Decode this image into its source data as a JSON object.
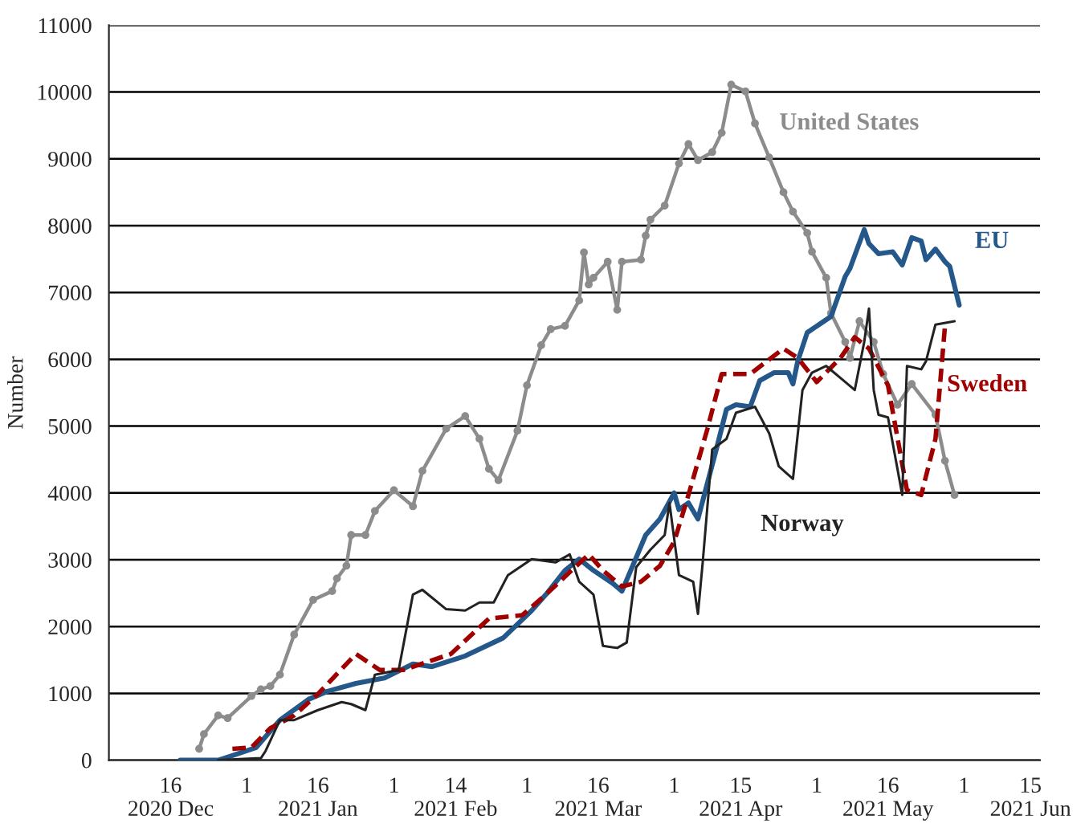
{
  "chart_data": {
    "type": "line",
    "ylabel": "Number",
    "grid": "y",
    "legend": false,
    "xlim": [
      "2020-12-03",
      "2021-06-17"
    ],
    "ylim": [
      0,
      11000
    ],
    "xticks": [
      {
        "value": "2020-12-16",
        "label": "16\n2020 Dec"
      },
      {
        "value": "2021-01-01",
        "label": "1"
      },
      {
        "value": "2021-01-16",
        "label": "16\n2021 Jan"
      },
      {
        "value": "2021-02-01",
        "label": "1"
      },
      {
        "value": "2021-02-14",
        "label": "14\n2021 Feb"
      },
      {
        "value": "2021-03-01",
        "label": "1"
      },
      {
        "value": "2021-03-16",
        "label": "16\n2021 Mar"
      },
      {
        "value": "2021-04-01",
        "label": "1"
      },
      {
        "value": "2021-04-15",
        "label": "15\n2021 Apr"
      },
      {
        "value": "2021-05-01",
        "label": "1"
      },
      {
        "value": "2021-05-16",
        "label": "16\n2021 May"
      },
      {
        "value": "2021-06-01",
        "label": "1"
      },
      {
        "value": "2021-06-15",
        "label": "15\n2021 Jun"
      }
    ],
    "yticks": [
      0,
      1000,
      2000,
      3000,
      4000,
      5000,
      6000,
      7000,
      8000,
      9000,
      10000,
      11000
    ],
    "series": [
      {
        "name": "United States",
        "color": "#8c8c8c",
        "marker": "circle",
        "line_style": "solid",
        "x": [
          "2020-12-22",
          "2020-12-23",
          "2020-12-26",
          "2020-12-28",
          "2021-01-02",
          "2021-01-04",
          "2021-01-06",
          "2021-01-08",
          "2021-01-11",
          "2021-01-15",
          "2021-01-19",
          "2021-01-20",
          "2021-01-22",
          "2021-01-23",
          "2021-01-26",
          "2021-01-28",
          "2021-02-01",
          "2021-02-05",
          "2021-02-07",
          "2021-02-12",
          "2021-02-16",
          "2021-02-19",
          "2021-02-21",
          "2021-02-23",
          "2021-02-27",
          "2021-03-01",
          "2021-03-04",
          "2021-03-06",
          "2021-03-09",
          "2021-03-12",
          "2021-03-13",
          "2021-03-14",
          "2021-03-15",
          "2021-03-18",
          "2021-03-20",
          "2021-03-21",
          "2021-03-25",
          "2021-03-26",
          "2021-03-27",
          "2021-03-30",
          "2021-04-02",
          "2021-04-04",
          "2021-04-06",
          "2021-04-09",
          "2021-04-11",
          "2021-04-13",
          "2021-04-16",
          "2021-04-18",
          "2021-04-21",
          "2021-04-24",
          "2021-04-26",
          "2021-04-29",
          "2021-04-30",
          "2021-05-03",
          "2021-05-04",
          "2021-05-07",
          "2021-05-08",
          "2021-05-10",
          "2021-05-13",
          "2021-05-15",
          "2021-05-18",
          "2021-05-21",
          "2021-05-26",
          "2021-05-28",
          "2021-05-30"
        ],
        "values": [
          170,
          390,
          670,
          630,
          960,
          1060,
          1110,
          1280,
          1880,
          2400,
          2530,
          2720,
          2910,
          3370,
          3370,
          3730,
          4040,
          3800,
          4330,
          4960,
          5150,
          4810,
          4360,
          4190,
          4930,
          5610,
          6210,
          6450,
          6500,
          6880,
          7600,
          7120,
          7220,
          7460,
          6740,
          7460,
          7490,
          7850,
          8090,
          8300,
          8930,
          9220,
          8980,
          9100,
          9390,
          10110,
          10010,
          9530,
          9020,
          8500,
          8210,
          7890,
          7610,
          7220,
          6690,
          6260,
          6020,
          6570,
          6260,
          5780,
          5320,
          5630,
          5170,
          4480,
          3970
        ]
      },
      {
        "name": "EU",
        "color": "#24588a",
        "marker": "none",
        "line_style": "solid",
        "x": [
          "2020-12-18",
          "2020-12-26",
          "2020-12-29",
          "2021-01-03",
          "2021-01-08",
          "2021-01-14",
          "2021-01-18",
          "2021-01-24",
          "2021-01-30",
          "2021-02-05",
          "2021-02-09",
          "2021-02-16",
          "2021-02-24",
          "2021-03-02",
          "2021-03-05",
          "2021-03-09",
          "2021-03-12",
          "2021-03-15",
          "2021-03-19",
          "2021-03-21",
          "2021-03-26",
          "2021-03-29",
          "2021-04-01",
          "2021-04-02",
          "2021-04-04",
          "2021-04-06",
          "2021-04-10",
          "2021-04-12",
          "2021-04-14",
          "2021-04-17",
          "2021-04-19",
          "2021-04-22",
          "2021-04-25",
          "2021-04-26",
          "2021-04-27",
          "2021-04-29",
          "2021-05-04",
          "2021-05-07",
          "2021-05-08",
          "2021-05-11",
          "2021-05-12",
          "2021-05-14",
          "2021-05-17",
          "2021-05-19",
          "2021-05-21",
          "2021-05-23",
          "2021-05-24",
          "2021-05-26",
          "2021-05-28",
          "2021-05-29",
          "2021-05-31"
        ],
        "values": [
          0,
          0,
          70,
          190,
          600,
          910,
          1030,
          1150,
          1230,
          1440,
          1400,
          1560,
          1830,
          2240,
          2480,
          2840,
          3010,
          2840,
          2650,
          2530,
          3370,
          3610,
          4000,
          3750,
          3850,
          3610,
          4690,
          5250,
          5320,
          5290,
          5680,
          5800,
          5800,
          5630,
          5970,
          6400,
          6640,
          7240,
          7360,
          7940,
          7730,
          7580,
          7610,
          7410,
          7820,
          7770,
          7490,
          7650,
          7460,
          7390,
          6810
        ]
      },
      {
        "name": "Sweden",
        "color": "#a00000",
        "marker": "none",
        "line_style": "dashed",
        "x": [
          "2020-12-29",
          "2021-01-02",
          "2021-01-06",
          "2021-01-11",
          "2021-01-16",
          "2021-01-24",
          "2021-01-29",
          "2021-02-03",
          "2021-02-13",
          "2021-02-21",
          "2021-02-28",
          "2021-03-05",
          "2021-03-14",
          "2021-03-17",
          "2021-03-21",
          "2021-03-25",
          "2021-03-29",
          "2021-04-01",
          "2021-04-04",
          "2021-04-08",
          "2021-04-11",
          "2021-04-17",
          "2021-04-24",
          "2021-04-27",
          "2021-05-01",
          "2021-05-06",
          "2021-05-09",
          "2021-05-12",
          "2021-05-16",
          "2021-05-20",
          "2021-05-23",
          "2021-05-26",
          "2021-05-28"
        ],
        "values": [
          170,
          190,
          480,
          670,
          990,
          1590,
          1350,
          1350,
          1590,
          2120,
          2170,
          2480,
          3080,
          2840,
          2600,
          2670,
          2910,
          3270,
          3970,
          4960,
          5780,
          5780,
          6160,
          6020,
          5660,
          6020,
          6330,
          6160,
          5610,
          4040,
          3970,
          4810,
          6500
        ]
      },
      {
        "name": "Norway",
        "color": "#222222",
        "marker": "none",
        "line_style": "solid",
        "x": [
          "2020-12-26",
          "2021-01-04",
          "2021-01-05",
          "2021-01-08",
          "2021-01-11",
          "2021-01-16",
          "2021-01-21",
          "2021-01-23",
          "2021-01-26",
          "2021-01-28",
          "2021-02-02",
          "2021-02-05",
          "2021-02-07",
          "2021-02-12",
          "2021-02-16",
          "2021-02-19",
          "2021-02-22",
          "2021-02-25",
          "2021-03-02",
          "2021-03-07",
          "2021-03-10",
          "2021-03-12",
          "2021-03-15",
          "2021-03-17",
          "2021-03-20",
          "2021-03-22",
          "2021-03-24",
          "2021-03-27",
          "2021-03-30",
          "2021-03-31",
          "2021-04-02",
          "2021-04-05",
          "2021-04-06",
          "2021-04-07",
          "2021-04-09",
          "2021-04-12",
          "2021-04-14",
          "2021-04-18",
          "2021-04-21",
          "2021-04-23",
          "2021-04-26",
          "2021-04-28",
          "2021-04-30",
          "2021-05-03",
          "2021-05-07",
          "2021-05-09",
          "2021-05-11",
          "2021-05-12",
          "2021-05-13",
          "2021-05-14",
          "2021-05-16",
          "2021-05-19",
          "2021-05-20",
          "2021-05-23",
          "2021-05-24",
          "2021-05-26",
          "2021-05-30"
        ],
        "values": [
          0,
          30,
          140,
          600,
          600,
          750,
          870,
          840,
          750,
          1280,
          1350,
          2480,
          2550,
          2260,
          2240,
          2360,
          2360,
          2770,
          3010,
          2960,
          3080,
          2670,
          2480,
          1710,
          1680,
          1760,
          2890,
          3150,
          3370,
          3850,
          2770,
          2670,
          2190,
          2960,
          4650,
          4810,
          5200,
          5290,
          4890,
          4400,
          4210,
          5540,
          5800,
          5900,
          5660,
          5540,
          6260,
          6760,
          5540,
          5170,
          5130,
          3970,
          5900,
          5850,
          5970,
          6520,
          6570
        ]
      }
    ]
  }
}
